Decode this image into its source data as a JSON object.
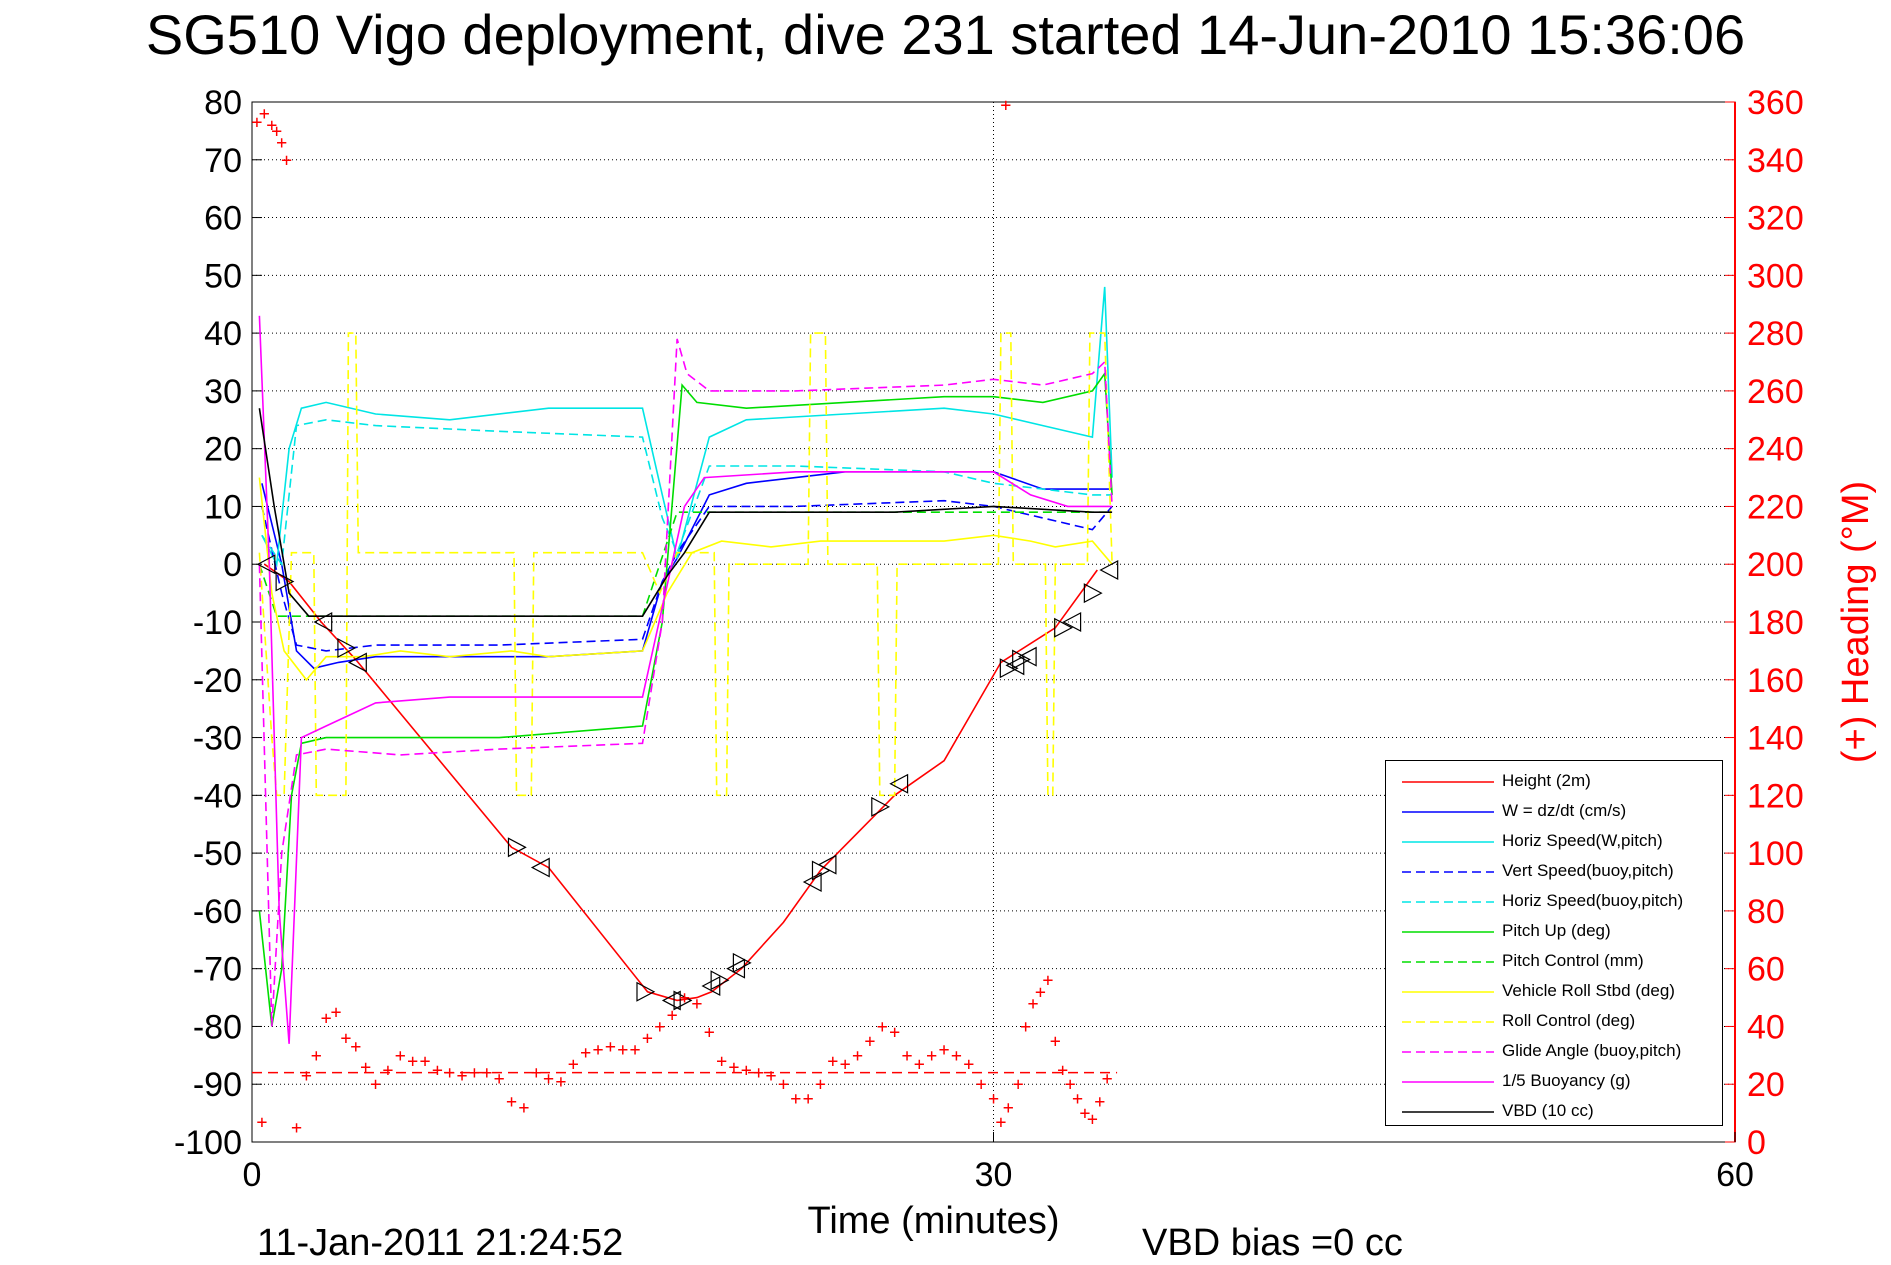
{
  "title": "SG510 Vigo deployment, dive 231 started 14-Jun-2010 15:36:06",
  "footer": {
    "date_stamp": "11-Jan-2011 21:24:52",
    "vbd_bias": "VBD bias =0 cc"
  },
  "chart_data": {
    "type": "line",
    "title": "SG510 Vigo deployment, dive 231 started 14-Jun-2010 15:36:06",
    "xlabel": "Time (minutes)",
    "ylabel_right": "(+) Heading (°M)",
    "xlim": [
      0,
      60
    ],
    "ylim": [
      -100,
      80
    ],
    "ylim_right": [
      0,
      360
    ],
    "x_ticks": [
      0,
      30,
      60
    ],
    "y_ticks": [
      80,
      70,
      60,
      50,
      40,
      30,
      20,
      10,
      0,
      -10,
      -20,
      -30,
      -40,
      -50,
      -60,
      -70,
      -80,
      -90,
      -100
    ],
    "y_ticks_right": [
      360,
      340,
      320,
      300,
      280,
      260,
      240,
      220,
      200,
      180,
      160,
      140,
      120,
      100,
      80,
      60,
      40,
      20,
      0
    ],
    "grid": true,
    "legend_position": "bottom-right",
    "colors": {
      "red": "#ff0000",
      "blue": "#0000ff",
      "cyan": "#00e5e5",
      "green": "#00dd00",
      "yellow": "#ffff00",
      "magenta": "#ff00ff",
      "black": "#000000"
    },
    "series": [
      {
        "name": "Height (2m)",
        "color": "red",
        "dash": false,
        "x": [
          0.5,
          1.5,
          2.8,
          4.2,
          10.5,
          12,
          16,
          17.2,
          18,
          18.6,
          19.8,
          21.5,
          23,
          26,
          28,
          30.3,
          32.5,
          34.2
        ],
        "y": [
          0,
          -3,
          -10,
          -16.5,
          -49,
          -52.5,
          -74,
          -75.5,
          -75,
          -74,
          -70,
          -62,
          -53,
          -40,
          -34,
          -17,
          -11,
          -1
        ]
      },
      {
        "name": "W = dz/dt (cm/s)",
        "color": "blue",
        "dash": false,
        "x": [
          0.4,
          1.2,
          1.8,
          2.5,
          3.5,
          5,
          8,
          12,
          15.8,
          16.6,
          17.2,
          18.5,
          20,
          24,
          27,
          30,
          32,
          34,
          34.8
        ],
        "y": [
          14,
          0,
          -15,
          -18,
          -17,
          -16,
          -16,
          -16,
          -15,
          -3,
          1,
          12,
          14,
          16,
          16,
          16,
          13,
          13,
          13
        ]
      },
      {
        "name": "Horiz Speed(W,pitch)",
        "color": "cyan",
        "dash": false,
        "x": [
          0.4,
          1.0,
          1.5,
          2.0,
          3.0,
          5,
          8,
          12,
          15.8,
          16.6,
          17.2,
          18.5,
          20,
          24,
          28,
          30,
          32,
          34,
          34.5,
          34.8
        ],
        "y": [
          5,
          0,
          20,
          27,
          28,
          26,
          25,
          27,
          27,
          12,
          1,
          22,
          25,
          26,
          27,
          26,
          24,
          22,
          48,
          15
        ]
      },
      {
        "name": "Vert Speed(buoy,pitch)",
        "color": "blue",
        "dash": true,
        "x": [
          0.4,
          1.2,
          1.8,
          3,
          5,
          10,
          15.8,
          16.6,
          17.2,
          18.5,
          22,
          28,
          30,
          32,
          34,
          34.8
        ],
        "y": [
          10,
          -5,
          -14,
          -15,
          -14,
          -14,
          -13,
          -3,
          2,
          10,
          10,
          11,
          10,
          8,
          6,
          10
        ]
      },
      {
        "name": "Horiz Speed(buoy,pitch)",
        "color": "cyan",
        "dash": true,
        "x": [
          0.4,
          1.2,
          1.8,
          3,
          5,
          10,
          15.8,
          16.6,
          17.2,
          18.5,
          22,
          28,
          30,
          32,
          34,
          34.8
        ],
        "y": [
          5,
          0,
          24,
          25,
          24,
          23,
          22,
          8,
          2,
          17,
          17,
          16,
          14,
          13,
          12,
          12
        ]
      },
      {
        "name": "Pitch Up (deg)",
        "color": "green",
        "dash": false,
        "x": [
          0.3,
          0.8,
          1.2,
          1.6,
          2.0,
          3,
          6,
          10,
          15.8,
          16.6,
          17.4,
          18,
          20,
          24,
          28,
          30,
          32,
          34,
          34.5,
          34.8
        ],
        "y": [
          -60,
          -80,
          -70,
          -40,
          -31,
          -30,
          -30,
          -30,
          -28,
          -10,
          31,
          28,
          27,
          28,
          29,
          29,
          28,
          30,
          33,
          12
        ]
      },
      {
        "name": "Pitch Control (mm)",
        "color": "green",
        "dash": true,
        "x": [
          0.3,
          1.0,
          1.4,
          2,
          6,
          15.8,
          17.2,
          17.6,
          30,
          34,
          34.8
        ],
        "y": [
          0,
          -9,
          -9,
          -9,
          -9,
          -9,
          9,
          9,
          9,
          9,
          9
        ]
      },
      {
        "name": "Vehicle Roll Stbd (deg)",
        "color": "yellow",
        "dash": false,
        "x": [
          0.3,
          0.8,
          1.3,
          2.2,
          3.0,
          4.5,
          6,
          8,
          10.5,
          12,
          15.8,
          16.8,
          17.8,
          19,
          21,
          23,
          25,
          26.5,
          28,
          30,
          31.5,
          32.5,
          34,
          34.8
        ],
        "y": [
          15,
          -5,
          -15,
          -20,
          -16,
          -16,
          -15,
          -16,
          -15,
          -16,
          -15,
          -5,
          2,
          4,
          3,
          4,
          4,
          4,
          4,
          5,
          4,
          3,
          4,
          0
        ]
      },
      {
        "name": "Roll Control (deg)",
        "color": "yellow",
        "dash": true,
        "x": [
          0.3,
          0.8,
          1.0,
          1.3,
          1.6,
          2.5,
          2.6,
          3.8,
          3.9,
          4.2,
          4.3,
          10.6,
          10.7,
          11.3,
          11.4,
          15.8,
          16.5,
          17.2,
          18.7,
          18.8,
          19.2,
          19.3,
          22.5,
          22.6,
          23.2,
          23.3,
          25.3,
          25.4,
          26.0,
          26.1,
          30.2,
          30.3,
          30.7,
          30.8,
          32.1,
          32.2,
          32.4,
          32.5,
          33.8,
          33.9,
          34.5,
          34.8
        ],
        "y": [
          2,
          -30,
          -40,
          -40,
          2,
          2,
          -40,
          -40,
          40,
          40,
          2,
          2,
          -40,
          -40,
          2,
          2,
          -5,
          2,
          2,
          -40,
          -40,
          0,
          0,
          40,
          40,
          0,
          0,
          -40,
          -40,
          0,
          0,
          40,
          40,
          0,
          0,
          -40,
          -40,
          0,
          0,
          40,
          40,
          0
        ]
      },
      {
        "name": "Glide Angle (buoy,pitch)",
        "color": "magenta",
        "dash": true,
        "x": [
          0.3,
          0.8,
          1.2,
          1.8,
          3,
          6,
          10,
          15.8,
          16.6,
          17.2,
          17.6,
          18.5,
          22,
          28,
          30,
          32,
          34,
          34.5,
          34.8
        ],
        "y": [
          0,
          -80,
          -50,
          -33,
          -32,
          -33,
          -32,
          -31,
          -10,
          39,
          33,
          30,
          30,
          31,
          32,
          31,
          33,
          35,
          10
        ]
      },
      {
        "name": "1/5 Buoyancy (g)",
        "color": "magenta",
        "dash": false,
        "x": [
          0.3,
          0.7,
          1.1,
          1.5,
          2.0,
          3,
          5,
          8,
          12,
          15.8,
          17.5,
          18.3,
          22,
          26,
          28,
          30,
          31.5,
          33,
          34.8
        ],
        "y": [
          43,
          0,
          -60,
          -83,
          -30,
          -28,
          -24,
          -23,
          -23,
          -23,
          10,
          15,
          16,
          16,
          16,
          16,
          12,
          10,
          10
        ]
      },
      {
        "name": "VBD (10 cc)",
        "color": "black",
        "dash": false,
        "x": [
          0.3,
          0.9,
          1.5,
          2.3,
          3,
          6,
          10,
          15.8,
          16.8,
          17.5,
          18.5,
          22,
          26,
          30,
          34,
          34.8
        ],
        "y": [
          27,
          10,
          -5,
          -9,
          -9,
          -9,
          -9,
          -9,
          -2,
          2,
          9,
          9,
          9,
          10,
          9,
          9
        ]
      }
    ],
    "heading_points": {
      "name": "(+) Heading",
      "color": "red",
      "x": [
        0.2,
        0.5,
        0.8,
        1.0,
        1.2,
        1.4,
        0.4,
        1.8,
        2.2,
        2.6,
        3.0,
        3.4,
        3.8,
        4.2,
        4.6,
        5.0,
        5.5,
        6.0,
        6.5,
        7.0,
        7.5,
        8.0,
        8.5,
        9.0,
        9.5,
        10.0,
        10.5,
        11.0,
        11.5,
        12.0,
        12.5,
        13.0,
        13.5,
        14.0,
        14.5,
        15.0,
        15.5,
        16.0,
        16.5,
        17.0,
        17.5,
        18.0,
        18.5,
        19.0,
        19.5,
        20.0,
        20.5,
        21.0,
        21.5,
        22.0,
        22.5,
        23.0,
        23.5,
        24.0,
        24.5,
        25.0,
        25.5,
        26.0,
        26.5,
        27.0,
        27.5,
        28.0,
        28.5,
        29.0,
        29.5,
        30.0,
        30.3,
        30.6,
        31.0,
        31.3,
        31.6,
        31.9,
        32.2,
        32.5,
        32.8,
        33.1,
        33.4,
        33.7,
        34.0,
        34.3,
        34.6,
        30.5
      ],
      "y": [
        353,
        356,
        352,
        350,
        346,
        340,
        7,
        5,
        23,
        30,
        43,
        45,
        36,
        33,
        26,
        20,
        25,
        30,
        28,
        28,
        25,
        24,
        23,
        24,
        24,
        22,
        14,
        12,
        24,
        22,
        21,
        27,
        31,
        32,
        33,
        32,
        32,
        36,
        40,
        44,
        50,
        48,
        38,
        28,
        26,
        25,
        24,
        23,
        20,
        15,
        15,
        20,
        28,
        27,
        30,
        35,
        40,
        38,
        30,
        27,
        30,
        32,
        30,
        27,
        20,
        15,
        7,
        12,
        20,
        40,
        48,
        52,
        56,
        35,
        25,
        20,
        15,
        10,
        8,
        14,
        22,
        359
      ]
    },
    "height_markers": {
      "x": [
        0.6,
        1.3,
        2.9,
        3.8,
        4.3,
        10.7,
        11.7,
        15.9,
        17.0,
        17.4,
        18.6,
        18.9,
        19.6,
        19.8,
        22.7,
        23.0,
        23.3,
        25.4,
        26.2,
        30.6,
        30.9,
        31.1,
        31.4,
        32.8,
        33.2,
        34.0,
        34.7
      ],
      "y": [
        0,
        -3,
        -10,
        -14.5,
        -17,
        -49,
        -52.5,
        -74,
        -75.5,
        -75.5,
        -73,
        -72,
        -70,
        -69,
        -55,
        -53,
        -52,
        -42,
        -38,
        -18,
        -17.5,
        -16.5,
        -16,
        -11,
        -10,
        -5,
        -1
      ]
    },
    "heading_mean_line": {
      "x": [
        0,
        35
      ],
      "y_right": 24
    }
  },
  "legend_title_note": ""
}
